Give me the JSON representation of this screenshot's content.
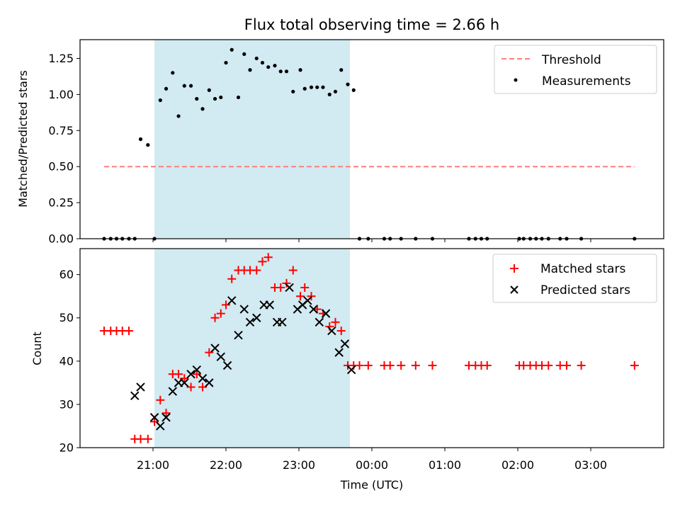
{
  "chart_data": [
    {
      "type": "scatter",
      "title": "Flux total observing time = 2.66 h",
      "xlabel": "",
      "ylabel": "Matched/Predicted stars",
      "ylim": [
        0,
        1.38
      ],
      "yticks": [
        "0.00",
        "0.25",
        "0.50",
        "0.75",
        "1.00",
        "1.25"
      ],
      "ytick_values": [
        0,
        0.25,
        0.5,
        0.75,
        1.0,
        1.25
      ],
      "xlim_hours": [
        20.0,
        28.0
      ],
      "shaded_interval_hours": [
        21.02,
        23.7
      ],
      "shade_color": "#add8e6",
      "threshold": {
        "name": "Threshold",
        "y": 0.5,
        "x_range_hours": [
          20.33,
          27.6
        ],
        "color": "#ff7f7f",
        "style": "dashed"
      },
      "legend": [
        "Threshold",
        "Measurements"
      ],
      "legend_position": "top-right",
      "series": [
        {
          "name": "Measurements",
          "color": "#000000",
          "marker": "dot",
          "x_hours": [
            20.33,
            20.42,
            20.5,
            20.58,
            20.67,
            20.75,
            20.83,
            20.93,
            21.02,
            21.1,
            21.18,
            21.27,
            21.35,
            21.43,
            21.52,
            21.6,
            21.68,
            21.77,
            21.85,
            21.93,
            22.0,
            22.08,
            22.17,
            22.25,
            22.33,
            22.42,
            22.5,
            22.58,
            22.67,
            22.75,
            22.83,
            22.92,
            23.02,
            23.08,
            23.17,
            23.25,
            23.33,
            23.42,
            23.5,
            23.58,
            23.67,
            23.75,
            23.83,
            23.95,
            24.17,
            24.25,
            24.4,
            24.6,
            24.83,
            25.33,
            25.42,
            25.5,
            25.58,
            26.02,
            26.08,
            26.17,
            26.25,
            26.33,
            26.42,
            26.58,
            26.67,
            26.87,
            27.6
          ],
          "y": [
            0,
            0,
            0,
            0,
            0,
            0,
            0.69,
            0.65,
            0,
            0.96,
            1.04,
            1.15,
            0.85,
            1.06,
            1.06,
            0.97,
            0.9,
            1.03,
            0.97,
            0.98,
            1.22,
            1.31,
            0.98,
            1.28,
            1.17,
            1.25,
            1.22,
            1.19,
            1.2,
            1.16,
            1.16,
            1.02,
            1.17,
            1.04,
            1.05,
            1.05,
            1.05,
            1.0,
            1.02,
            1.17,
            1.07,
            1.03,
            0,
            0,
            0,
            0,
            0,
            0,
            0,
            0,
            0,
            0,
            0,
            0,
            0,
            0,
            0,
            0,
            0,
            0,
            0,
            0,
            0
          ]
        }
      ]
    },
    {
      "type": "scatter",
      "title": "",
      "xlabel": "Time (UTC)",
      "ylabel": "Count",
      "ylim": [
        20,
        66
      ],
      "yticks": [
        "20",
        "30",
        "40",
        "50",
        "60"
      ],
      "ytick_values": [
        20,
        30,
        40,
        50,
        60
      ],
      "xlim_hours": [
        20.0,
        28.0
      ],
      "xticks": [
        "21:00",
        "22:00",
        "23:00",
        "00:00",
        "01:00",
        "02:00",
        "03:00"
      ],
      "xtick_values_hours": [
        21,
        22,
        23,
        24,
        25,
        26,
        27
      ],
      "shaded_interval_hours": [
        21.02,
        23.7
      ],
      "shade_color": "#add8e6",
      "legend": [
        "Matched stars",
        "Predicted stars"
      ],
      "legend_position": "top-right",
      "series": [
        {
          "name": "Matched stars",
          "color": "#ff0000",
          "marker": "plus",
          "x_hours": [
            20.33,
            20.42,
            20.5,
            20.58,
            20.67,
            20.75,
            20.83,
            20.93,
            21.02,
            21.1,
            21.18,
            21.27,
            21.35,
            21.43,
            21.52,
            21.6,
            21.68,
            21.77,
            21.85,
            21.93,
            22.0,
            22.08,
            22.17,
            22.25,
            22.33,
            22.42,
            22.5,
            22.58,
            22.67,
            22.75,
            22.83,
            22.92,
            23.02,
            23.08,
            23.17,
            23.25,
            23.33,
            23.42,
            23.5,
            23.58,
            23.67,
            23.75,
            23.83,
            23.95,
            24.17,
            24.25,
            24.4,
            24.6,
            24.83,
            25.33,
            25.42,
            25.5,
            25.58,
            26.02,
            26.08,
            26.17,
            26.25,
            26.33,
            26.42,
            26.58,
            26.67,
            26.87,
            27.6
          ],
          "y": [
            47,
            47,
            47,
            47,
            47,
            22,
            22,
            22,
            26,
            31,
            28,
            37,
            37,
            36,
            34,
            37,
            34,
            42,
            50,
            51,
            53,
            59,
            61,
            61,
            61,
            61,
            63,
            64,
            57,
            57,
            58,
            61,
            55,
            57,
            55,
            52,
            51,
            48,
            49,
            47,
            39,
            39,
            39,
            39,
            39,
            39,
            39,
            39,
            39,
            39,
            39,
            39,
            39,
            39,
            39,
            39,
            39,
            39,
            39,
            39,
            39,
            39,
            39
          ]
        },
        {
          "name": "Predicted stars",
          "color": "#000000",
          "marker": "x",
          "x_hours": [
            20.75,
            20.83,
            21.02,
            21.1,
            21.18,
            21.27,
            21.35,
            21.43,
            21.52,
            21.6,
            21.68,
            21.77,
            21.85,
            21.93,
            22.02,
            22.08,
            22.17,
            22.25,
            22.33,
            22.42,
            22.52,
            22.6,
            22.7,
            22.77,
            22.87,
            22.98,
            23.05,
            23.12,
            23.2,
            23.28,
            23.37,
            23.45,
            23.55,
            23.63,
            23.72
          ],
          "y": [
            32,
            34,
            27,
            25,
            27,
            33,
            35,
            35,
            37,
            38,
            36,
            35,
            43,
            41,
            39,
            54,
            46,
            52,
            49,
            50,
            53,
            53,
            49,
            49,
            57,
            52,
            53,
            54,
            52,
            49,
            51,
            47,
            42,
            44,
            38
          ]
        }
      ]
    }
  ]
}
